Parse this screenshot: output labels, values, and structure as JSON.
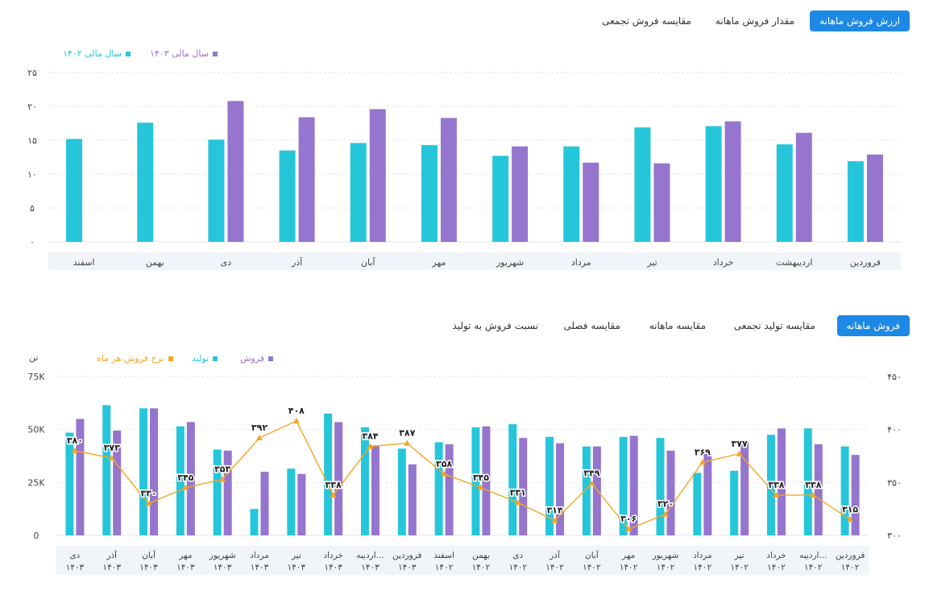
{
  "colors": {
    "teal": "#26c6da",
    "purple": "#9575cd",
    "orange": "#f5a623",
    "blue": "#1e88e5"
  },
  "top": {
    "tabs": [
      {
        "label": "ارزش فروش ماهانه",
        "active": true
      },
      {
        "label": "مقدار فروش ماهانه",
        "active": false
      },
      {
        "label": "مقایسه فروش تجمعی",
        "active": false
      }
    ],
    "legend": [
      {
        "label": "سال مالی ۱۴۰۳",
        "color": "#9575cd"
      },
      {
        "label": "سال مالی ۱۴۰۲",
        "color": "#26c6da"
      }
    ]
  },
  "bottom": {
    "tabs": [
      {
        "label": "فروش ماهانه",
        "active": true
      },
      {
        "label": "مقایسه تولید تجمعی",
        "active": false
      },
      {
        "label": "مقایسه ماهانه",
        "active": false
      },
      {
        "label": "مقایسه فصلی",
        "active": false
      },
      {
        "label": "نسبت فروش به تولید",
        "active": false
      }
    ],
    "legend": [
      {
        "label": "فروش",
        "color": "#9575cd"
      },
      {
        "label": "تولید",
        "color": "#26c6da"
      },
      {
        "label": "نرخ فروش هر ماه",
        "color": "#f5a623"
      }
    ],
    "unit_label": "تن"
  },
  "chart_data": [
    {
      "type": "bar",
      "categories": [
        "فروردین",
        "اردیبهشت",
        "خرداد",
        "تیر",
        "مرداد",
        "شهریور",
        "مهر",
        "آبان",
        "آذر",
        "دی",
        "بهمن",
        "اسفند"
      ],
      "series": [
        {
          "name": "سال مالی ۱۴۰۲",
          "color": "#26c6da",
          "values": [
            11.9,
            14.4,
            17.1,
            16.9,
            14.1,
            12.7,
            14.3,
            14.6,
            13.5,
            15.1,
            17.6,
            15.2
          ]
        },
        {
          "name": "سال مالی ۱۴۰۳",
          "color": "#9575cd",
          "values": [
            12.9,
            16.1,
            17.8,
            11.6,
            11.7,
            14.1,
            18.3,
            19.6,
            18.4,
            20.8,
            null,
            null
          ]
        }
      ],
      "ylim": [
        0,
        25
      ],
      "yticks": [
        "۰",
        "۵",
        "۱۰",
        "۱۵",
        "۲۰",
        "۲۵"
      ],
      "grid": true,
      "legend": "top-left"
    },
    {
      "type": "bar",
      "categories": [
        "فروردین ۱۴۰۲",
        "اردیبه... ۱۴۰۲",
        "خرداد ۱۴۰۲",
        "تیر ۱۴۰۲",
        "مرداد ۱۴۰۲",
        "شهریور ۱۴۰۲",
        "مهر ۱۴۰۲",
        "آبان ۱۴۰۲",
        "آذر ۱۴۰۲",
        "دی ۱۴۰۲",
        "بهمن ۱۴۰۲",
        "اسفند ۱۴۰۲",
        "فروردین ۱۴۰۳",
        "اردیبه... ۱۴۰۳",
        "خرداد ۱۴۰۳",
        "تیر ۱۴۰۳",
        "مرداد ۱۴۰۳",
        "شهریور ۱۴۰۳",
        "مهر ۱۴۰۳",
        "آبان ۱۴۰۳",
        "آذر ۱۴۰۳",
        "دی ۱۴۰۳"
      ],
      "series": [
        {
          "name": "تولید",
          "color": "#26c6da",
          "axis": "left",
          "values": [
            42000,
            50500,
            47500,
            30500,
            29500,
            46000,
            46500,
            42000,
            46500,
            52500,
            51000,
            44000,
            41000,
            51000,
            57500,
            31500,
            12500,
            40500,
            51500,
            60000,
            61500,
            48500
          ]
        },
        {
          "name": "فروش",
          "color": "#9575cd",
          "axis": "left",
          "values": [
            38000,
            43000,
            50500,
            44500,
            38500,
            40000,
            47000,
            42000,
            43500,
            46000,
            51500,
            43000,
            33500,
            42500,
            53500,
            29000,
            30000,
            40000,
            53500,
            60000,
            49500,
            55000
          ]
        },
        {
          "name": "نرخ فروش هر ماه",
          "color": "#f5a623",
          "axis": "right",
          "type": "line",
          "values": [
            315,
            338,
            338,
            377,
            369,
            320,
            306,
            349,
            314,
            331,
            345,
            358,
            387,
            384,
            338,
            408,
            392,
            353,
            345,
            330,
            373,
            380
          ],
          "labels": [
            "۳۱۵",
            "۳۳۸",
            "۳۳۸",
            "۳۷۷",
            "۳۶۹",
            "۳۲۰",
            "۳۰۶",
            "۳۴۹",
            "۳۱۴",
            "۳۳۱",
            "۳۴۵",
            "۳۵۸",
            "۳۸۷",
            "۳۸۴",
            "۳۳۸",
            "۴۰۸",
            "۳۹۲",
            "۳۵۳",
            "۳۴۵",
            "۳۳۰",
            "۳۷۳",
            "۳۸۰"
          ]
        }
      ],
      "ylim": [
        0,
        75000
      ],
      "yticks": [
        "0",
        "25K",
        "50K",
        "75K"
      ],
      "y2lim": [
        300,
        450
      ],
      "y2ticks": [
        "۳۰۰",
        "۳۵۰",
        "۴۰۰",
        "۴۵۰"
      ],
      "grid": true,
      "legend": "top-left"
    }
  ]
}
